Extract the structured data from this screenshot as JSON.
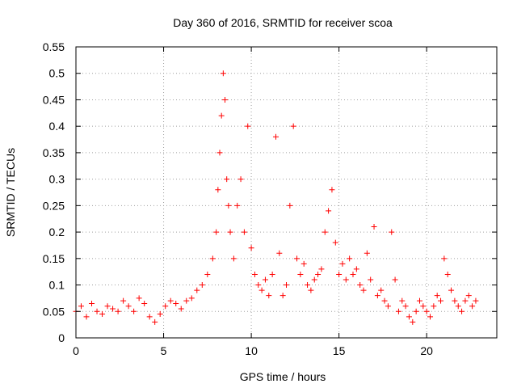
{
  "chart_data": {
    "type": "scatter",
    "title": "Day 360 of 2016, SRMTID for receiver scoa",
    "xlabel": "GPS time / hours",
    "ylabel": "SRMTID / TECUs",
    "xlim": [
      0,
      24
    ],
    "ylim": [
      0,
      0.55
    ],
    "grid": true,
    "marker": "+",
    "x_ticks": [
      0,
      5,
      10,
      15,
      20
    ],
    "x_tick_labels": [
      "0",
      "5",
      "10",
      "15",
      "20"
    ],
    "y_ticks": [
      0,
      0.05,
      0.1,
      0.15,
      0.2,
      0.25,
      0.3,
      0.35,
      0.4,
      0.45,
      0.5,
      0.55
    ],
    "y_tick_labels": [
      "0",
      "0.05",
      "0.1",
      "0.15",
      "0.2",
      "0.25",
      "0.3",
      "0.35",
      "0.4",
      "0.45",
      "0.5",
      "0.55"
    ],
    "series": [
      {
        "name": "SRMTID",
        "color": "#ff0000",
        "x": [
          0.0,
          0.3,
          0.6,
          0.9,
          1.2,
          1.5,
          1.8,
          2.1,
          2.4,
          2.7,
          3.0,
          3.3,
          3.6,
          3.9,
          4.2,
          4.5,
          4.8,
          5.1,
          5.4,
          5.7,
          6.0,
          6.3,
          6.6,
          6.9,
          7.2,
          7.5,
          7.8,
          8.0,
          8.1,
          8.2,
          8.3,
          8.4,
          8.5,
          8.6,
          8.7,
          8.8,
          9.0,
          9.2,
          9.4,
          9.6,
          9.8,
          10.0,
          10.2,
          10.4,
          10.6,
          10.8,
          11.0,
          11.2,
          11.4,
          11.6,
          11.8,
          12.0,
          12.2,
          12.4,
          12.6,
          12.8,
          13.0,
          13.2,
          13.4,
          13.6,
          13.8,
          14.0,
          14.2,
          14.4,
          14.6,
          14.8,
          15.0,
          15.2,
          15.4,
          15.6,
          15.8,
          16.0,
          16.2,
          16.4,
          16.6,
          16.8,
          17.0,
          17.2,
          17.4,
          17.6,
          17.8,
          18.0,
          18.2,
          18.4,
          18.6,
          18.8,
          19.0,
          19.2,
          19.4,
          19.6,
          19.8,
          20.0,
          20.2,
          20.4,
          20.6,
          20.8,
          21.0,
          21.2,
          21.4,
          21.6,
          21.8,
          22.0,
          22.2,
          22.4,
          22.6,
          22.8
        ],
        "y": [
          0.05,
          0.06,
          0.04,
          0.065,
          0.05,
          0.045,
          0.06,
          0.055,
          0.05,
          0.07,
          0.06,
          0.05,
          0.075,
          0.065,
          0.04,
          0.03,
          0.045,
          0.06,
          0.07,
          0.065,
          0.055,
          0.07,
          0.075,
          0.09,
          0.1,
          0.12,
          0.15,
          0.2,
          0.28,
          0.35,
          0.42,
          0.5,
          0.45,
          0.3,
          0.25,
          0.2,
          0.15,
          0.25,
          0.3,
          0.2,
          0.4,
          0.17,
          0.12,
          0.1,
          0.09,
          0.11,
          0.08,
          0.12,
          0.38,
          0.16,
          0.08,
          0.1,
          0.25,
          0.4,
          0.15,
          0.12,
          0.14,
          0.1,
          0.09,
          0.11,
          0.12,
          0.13,
          0.2,
          0.24,
          0.28,
          0.18,
          0.12,
          0.14,
          0.11,
          0.15,
          0.12,
          0.13,
          0.1,
          0.09,
          0.16,
          0.11,
          0.21,
          0.08,
          0.09,
          0.07,
          0.06,
          0.2,
          0.11,
          0.05,
          0.07,
          0.06,
          0.04,
          0.03,
          0.05,
          0.07,
          0.06,
          0.05,
          0.04,
          0.06,
          0.08,
          0.07,
          0.15,
          0.12,
          0.09,
          0.07,
          0.06,
          0.05,
          0.07,
          0.08,
          0.06,
          0.07
        ]
      }
    ]
  }
}
